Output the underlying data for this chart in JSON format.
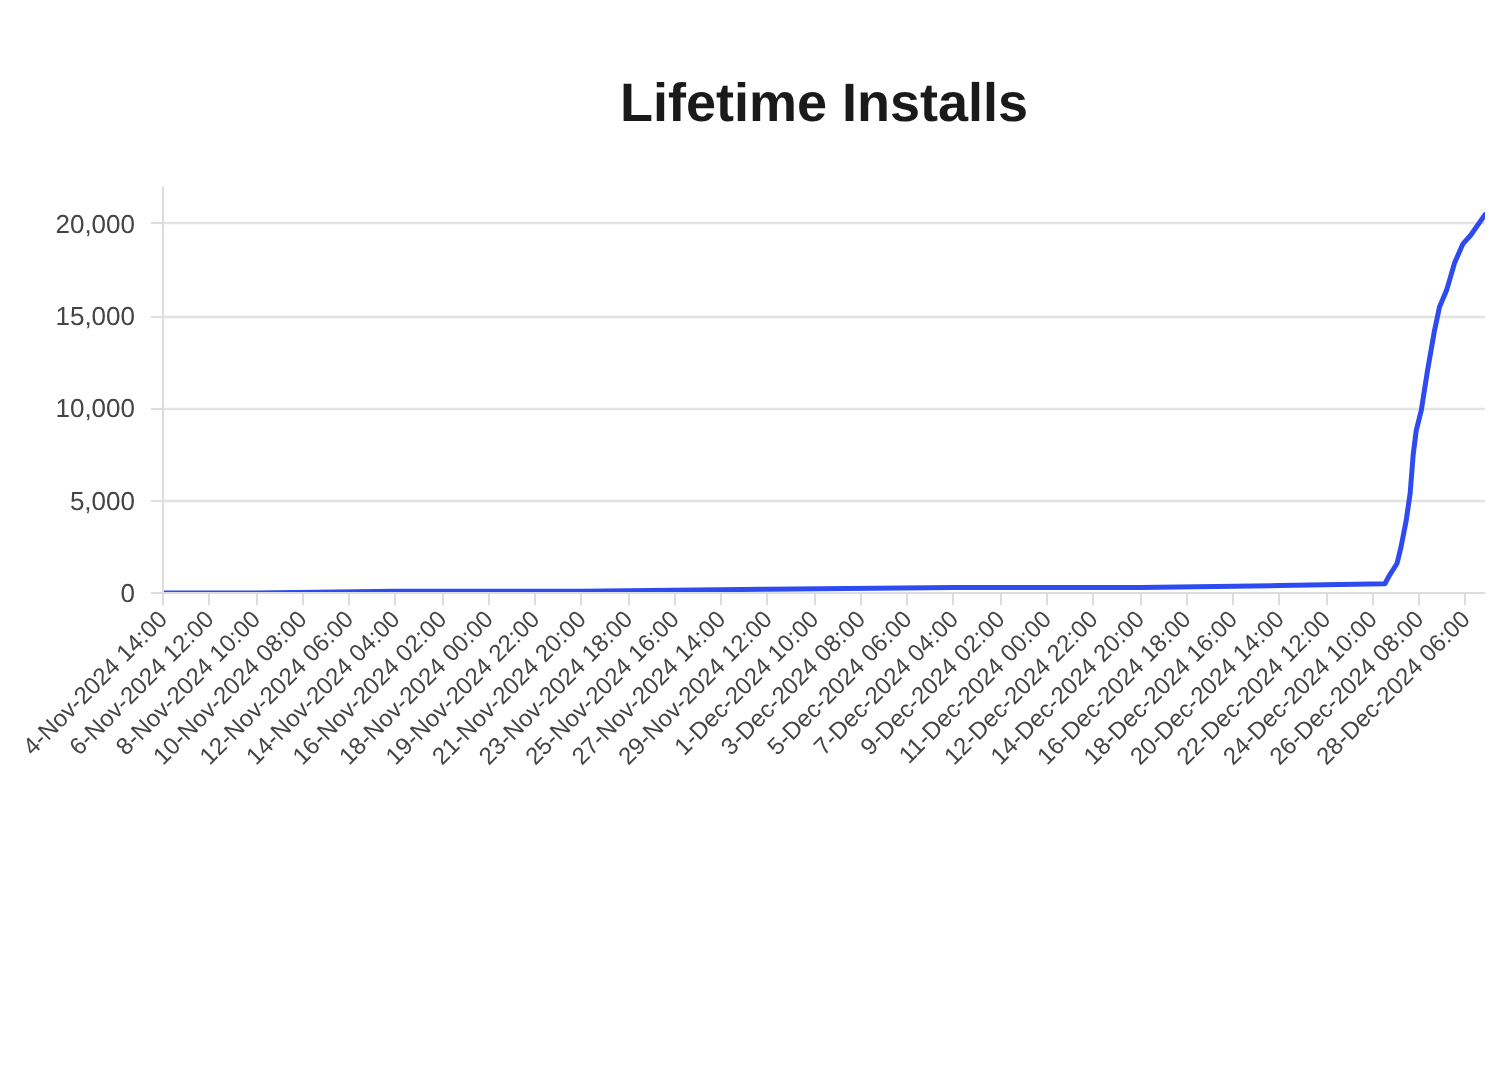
{
  "chart_data": {
    "type": "line",
    "title": "Lifetime Installs",
    "x": [
      "2024-11-04T14:00",
      "2024-11-08T10:00",
      "2024-11-14T04:00",
      "2024-11-21T20:00",
      "2024-11-29T12:00",
      "2024-12-07T04:00",
      "2024-12-14T20:00",
      "2024-12-20T14:00",
      "2024-12-24T22:00",
      "2024-12-25T03:00",
      "2024-12-25T10:00",
      "2024-12-25T14:00",
      "2024-12-25T19:00",
      "2024-12-25T23:00",
      "2024-12-26T02:00",
      "2024-12-26T05:00",
      "2024-12-26T10:00",
      "2024-12-26T16:00",
      "2024-12-26T23:00",
      "2024-12-27T04:00",
      "2024-12-27T11:00",
      "2024-12-27T19:00",
      "2024-12-28T03:00",
      "2024-12-28T11:00",
      "2024-12-29T01:00"
    ],
    "series": [
      {
        "color": "#2e4bf0",
        "values": [
          0,
          0,
          100,
          100,
          200,
          300,
          300,
          400,
          500,
          1000,
          1600,
          2500,
          3900,
          5400,
          7500,
          8800,
          9900,
          12000,
          14200,
          15500,
          16400,
          17900,
          18900,
          19400,
          20500
        ]
      }
    ],
    "xlim": [
      "2024-11-04T14:00",
      "2024-12-29T01:00"
    ],
    "ylim": [
      0,
      22000
    ],
    "xticks": [
      {
        "value": "2024-11-04T14:00",
        "label": "4-Nov-2024 14:00"
      },
      {
        "value": "2024-11-06T12:00",
        "label": "6-Nov-2024 12:00"
      },
      {
        "value": "2024-11-08T10:00",
        "label": "8-Nov-2024 10:00"
      },
      {
        "value": "2024-11-10T08:00",
        "label": "10-Nov-2024 08:00"
      },
      {
        "value": "2024-11-12T06:00",
        "label": "12-Nov-2024 06:00"
      },
      {
        "value": "2024-11-14T04:00",
        "label": "14-Nov-2024 04:00"
      },
      {
        "value": "2024-11-16T02:00",
        "label": "16-Nov-2024 02:00"
      },
      {
        "value": "2024-11-18T00:00",
        "label": "18-Nov-2024 00:00"
      },
      {
        "value": "2024-11-19T22:00",
        "label": "19-Nov-2024 22:00"
      },
      {
        "value": "2024-11-21T20:00",
        "label": "21-Nov-2024 20:00"
      },
      {
        "value": "2024-11-23T18:00",
        "label": "23-Nov-2024 18:00"
      },
      {
        "value": "2024-11-25T16:00",
        "label": "25-Nov-2024 16:00"
      },
      {
        "value": "2024-11-27T14:00",
        "label": "27-Nov-2024 14:00"
      },
      {
        "value": "2024-11-29T12:00",
        "label": "29-Nov-2024 12:00"
      },
      {
        "value": "2024-12-01T10:00",
        "label": "1-Dec-2024 10:00"
      },
      {
        "value": "2024-12-03T08:00",
        "label": "3-Dec-2024 08:00"
      },
      {
        "value": "2024-12-05T06:00",
        "label": "5-Dec-2024 06:00"
      },
      {
        "value": "2024-12-07T04:00",
        "label": "7-Dec-2024 04:00"
      },
      {
        "value": "2024-12-09T02:00",
        "label": "9-Dec-2024 02:00"
      },
      {
        "value": "2024-12-11T00:00",
        "label": "11-Dec-2024 00:00"
      },
      {
        "value": "2024-12-12T22:00",
        "label": "12-Dec-2024 22:00"
      },
      {
        "value": "2024-12-14T20:00",
        "label": "14-Dec-2024 20:00"
      },
      {
        "value": "2024-12-16T18:00",
        "label": "16-Dec-2024 18:00"
      },
      {
        "value": "2024-12-18T16:00",
        "label": "18-Dec-2024 16:00"
      },
      {
        "value": "2024-12-20T14:00",
        "label": "20-Dec-2024 14:00"
      },
      {
        "value": "2024-12-22T12:00",
        "label": "22-Dec-2024 12:00"
      },
      {
        "value": "2024-12-24T10:00",
        "label": "24-Dec-2024 10:00"
      },
      {
        "value": "2024-12-26T08:00",
        "label": "26-Dec-2024 08:00"
      },
      {
        "value": "2024-12-28T06:00",
        "label": "28-Dec-2024 06:00"
      }
    ],
    "yticks": [
      0,
      {
        "value": 5000,
        "label": "5,000"
      },
      {
        "value": 10000,
        "label": "10,000"
      },
      {
        "value": 15000,
        "label": "15,000"
      },
      {
        "value": 20000,
        "label": "20,000"
      }
    ],
    "grid": "y"
  }
}
